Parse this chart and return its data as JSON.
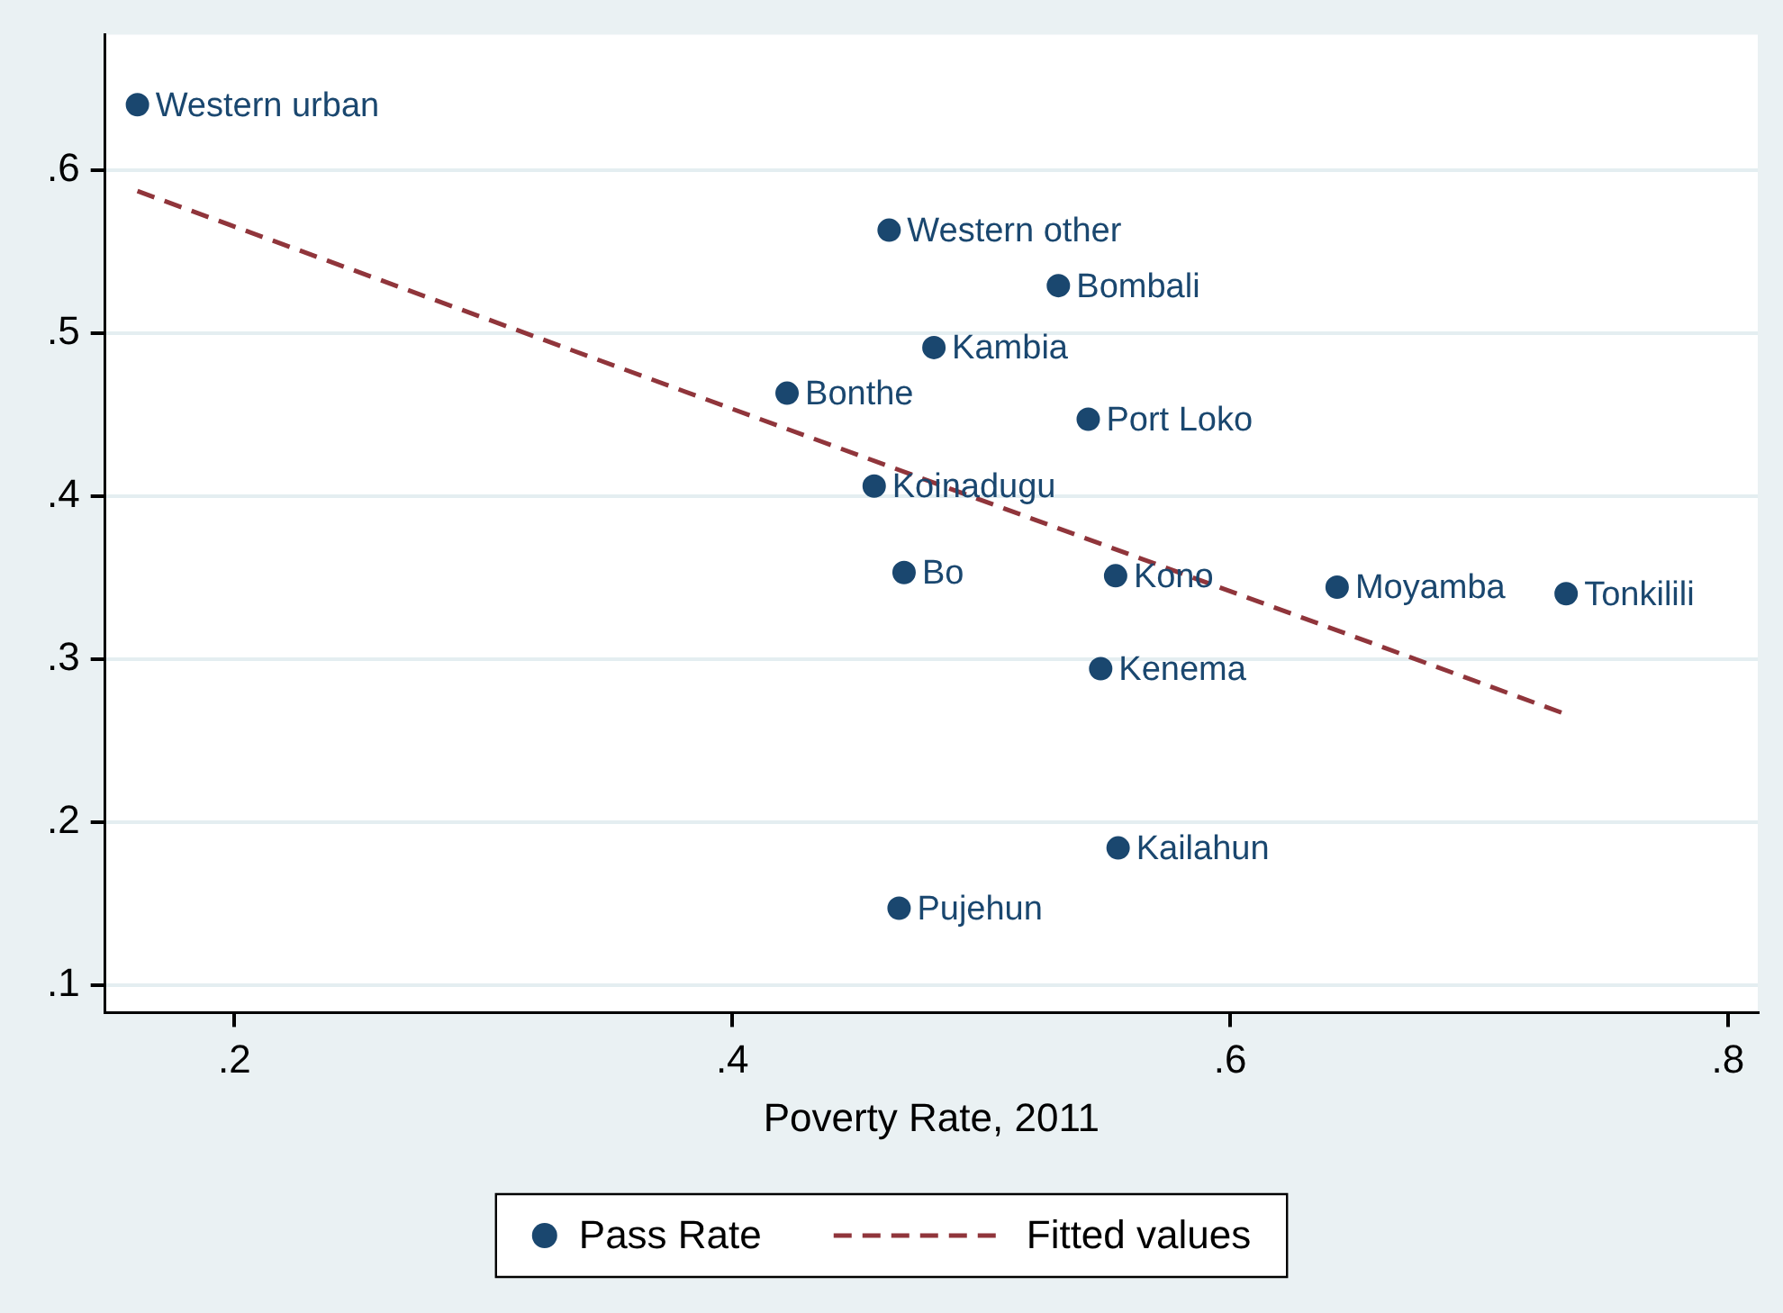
{
  "chart_data": {
    "type": "scatter",
    "xlabel": "Poverty Rate, 2011",
    "series": [
      {
        "name": "Pass Rate",
        "color": "#1a476f",
        "x": [
          0.161,
          0.463,
          0.531,
          0.481,
          0.422,
          0.543,
          0.457,
          0.469,
          0.554,
          0.643,
          0.735,
          0.548,
          0.555,
          0.467
        ],
        "values": [
          0.64,
          0.563,
          0.529,
          0.491,
          0.463,
          0.447,
          0.406,
          0.353,
          0.351,
          0.344,
          0.34,
          0.294,
          0.184,
          0.147
        ],
        "marker": "circle"
      },
      {
        "name": "Fitted values",
        "type": "line",
        "color": "#90353b",
        "x": [
          0.161,
          0.735
        ],
        "values": [
          0.587,
          0.266
        ],
        "line_style": "dashed",
        "marker": "none"
      }
    ],
    "annotations": [
      {
        "text": "Western urban",
        "x": 0.161,
        "y": 0.64
      },
      {
        "text": "Western other",
        "x": 0.463,
        "y": 0.563
      },
      {
        "text": "Bombali",
        "x": 0.531,
        "y": 0.529
      },
      {
        "text": "Kambia",
        "x": 0.481,
        "y": 0.491
      },
      {
        "text": "Bonthe",
        "x": 0.422,
        "y": 0.463
      },
      {
        "text": "Port Loko",
        "x": 0.543,
        "y": 0.447
      },
      {
        "text": "Koinadugu",
        "x": 0.457,
        "y": 0.406
      },
      {
        "text": "Bo",
        "x": 0.469,
        "y": 0.353
      },
      {
        "text": "Kono",
        "x": 0.554,
        "y": 0.351
      },
      {
        "text": "Moyamba",
        "x": 0.643,
        "y": 0.344
      },
      {
        "text": "Tonkilili",
        "x": 0.735,
        "y": 0.34
      },
      {
        "text": "Kenema",
        "x": 0.548,
        "y": 0.294
      },
      {
        "text": "Kailahun",
        "x": 0.555,
        "y": 0.184
      },
      {
        "text": "Pujehun",
        "x": 0.467,
        "y": 0.147
      }
    ],
    "xlim": [
      0.148,
      0.812
    ],
    "ylim": [
      0.083,
      0.683
    ],
    "xticks": [
      {
        "value": 0.2,
        "label": ".2"
      },
      {
        "value": 0.4,
        "label": ".4"
      },
      {
        "value": 0.6,
        "label": ".6"
      },
      {
        "value": 0.8,
        "label": ".8"
      }
    ],
    "yticks": [
      {
        "value": 0.1,
        "label": ".1"
      },
      {
        "value": 0.2,
        "label": ".2"
      },
      {
        "value": 0.3,
        "label": ".3"
      },
      {
        "value": 0.4,
        "label": ".4"
      },
      {
        "value": 0.5,
        "label": ".5"
      },
      {
        "value": 0.6,
        "label": ".6"
      }
    ],
    "grid": "y",
    "legend": "bottom"
  }
}
